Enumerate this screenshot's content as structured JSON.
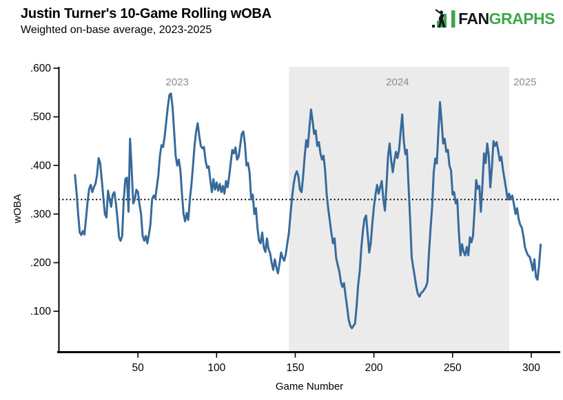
{
  "header": {
    "title": "Justin Turner's 10-Game Rolling wOBA",
    "subtitle": "Weighted on-base average, 2023-2025"
  },
  "logo": {
    "fan": "FAN",
    "graphs": "GRAPHS",
    "green": "#3fa74a",
    "dark": "#10181d"
  },
  "chart_data": {
    "type": "line",
    "title": "Justin Turner's 10-Game Rolling wOBA",
    "subtitle": "Weighted on-base average, 2023-2025",
    "xlabel": "Game Number",
    "ylabel": "wOBA",
    "xlim": [
      0,
      318
    ],
    "ylim": [
      0.018,
      0.603
    ],
    "x_ticks": [
      50,
      100,
      150,
      200,
      250,
      300
    ],
    "y_ticks": [
      0.1,
      0.2,
      0.3,
      0.4,
      0.5,
      0.6
    ],
    "y_tick_labels": [
      ".100",
      ".200",
      ".300",
      ".400",
      ".500",
      ".600"
    ],
    "grid": false,
    "legend": "none",
    "line_color": "#376a9b",
    "axis_color": "#000000",
    "year_label_color": "#8a8a8a",
    "reference_line": {
      "value": 0.33,
      "style": "dotted",
      "color": "#000000"
    },
    "season_bands": [
      {
        "label": "2023",
        "label_x": 75,
        "shaded": false
      },
      {
        "label": "2024",
        "x_start": 146,
        "x_end": 286,
        "shaded": true,
        "color": "#ebebeb",
        "label_x": 215
      },
      {
        "label": "2025",
        "label_x": 296,
        "shaded": false
      }
    ],
    "series": [
      {
        "name": "10-Game Rolling wOBA",
        "points": [
          [
            10,
            0.38
          ],
          [
            11,
            0.345
          ],
          [
            12,
            0.3
          ],
          [
            13,
            0.262
          ],
          [
            14,
            0.257
          ],
          [
            15,
            0.265
          ],
          [
            16,
            0.258
          ],
          [
            17,
            0.29
          ],
          [
            18,
            0.325
          ],
          [
            19,
            0.352
          ],
          [
            20,
            0.36
          ],
          [
            21,
            0.345
          ],
          [
            22,
            0.355
          ],
          [
            23,
            0.362
          ],
          [
            24,
            0.38
          ],
          [
            25,
            0.415
          ],
          [
            26,
            0.405
          ],
          [
            27,
            0.372
          ],
          [
            28,
            0.335
          ],
          [
            29,
            0.3
          ],
          [
            30,
            0.293
          ],
          [
            31,
            0.348
          ],
          [
            32,
            0.33
          ],
          [
            33,
            0.315
          ],
          [
            34,
            0.34
          ],
          [
            35,
            0.345
          ],
          [
            36,
            0.322
          ],
          [
            37,
            0.29
          ],
          [
            38,
            0.252
          ],
          [
            39,
            0.245
          ],
          [
            40,
            0.255
          ],
          [
            41,
            0.33
          ],
          [
            42,
            0.372
          ],
          [
            43,
            0.375
          ],
          [
            44,
            0.305
          ],
          [
            45,
            0.455
          ],
          [
            46,
            0.395
          ],
          [
            47,
            0.322
          ],
          [
            48,
            0.33
          ],
          [
            49,
            0.35
          ],
          [
            50,
            0.345
          ],
          [
            51,
            0.32
          ],
          [
            52,
            0.3
          ],
          [
            53,
            0.255
          ],
          [
            54,
            0.245
          ],
          [
            55,
            0.255
          ],
          [
            56,
            0.24
          ],
          [
            57,
            0.258
          ],
          [
            58,
            0.28
          ],
          [
            59,
            0.33
          ],
          [
            60,
            0.338
          ],
          [
            61,
            0.332
          ],
          [
            62,
            0.355
          ],
          [
            63,
            0.38
          ],
          [
            64,
            0.42
          ],
          [
            65,
            0.442
          ],
          [
            66,
            0.438
          ],
          [
            67,
            0.46
          ],
          [
            68,
            0.49
          ],
          [
            69,
            0.52
          ],
          [
            70,
            0.545
          ],
          [
            71,
            0.548
          ],
          [
            72,
            0.52
          ],
          [
            73,
            0.47
          ],
          [
            74,
            0.42
          ],
          [
            75,
            0.4
          ],
          [
            76,
            0.412
          ],
          [
            77,
            0.39
          ],
          [
            78,
            0.34
          ],
          [
            79,
            0.3
          ],
          [
            80,
            0.285
          ],
          [
            81,
            0.302
          ],
          [
            82,
            0.288
          ],
          [
            83,
            0.33
          ],
          [
            84,
            0.36
          ],
          [
            85,
            0.4
          ],
          [
            86,
            0.44
          ],
          [
            87,
            0.47
          ],
          [
            88,
            0.487
          ],
          [
            89,
            0.46
          ],
          [
            90,
            0.44
          ],
          [
            91,
            0.435
          ],
          [
            92,
            0.438
          ],
          [
            93,
            0.41
          ],
          [
            94,
            0.395
          ],
          [
            95,
            0.398
          ],
          [
            96,
            0.37
          ],
          [
            97,
            0.345
          ],
          [
            98,
            0.372
          ],
          [
            99,
            0.35
          ],
          [
            100,
            0.365
          ],
          [
            101,
            0.348
          ],
          [
            102,
            0.362
          ],
          [
            103,
            0.345
          ],
          [
            104,
            0.358
          ],
          [
            105,
            0.342
          ],
          [
            106,
            0.368
          ],
          [
            107,
            0.355
          ],
          [
            108,
            0.378
          ],
          [
            109,
            0.405
          ],
          [
            110,
            0.432
          ],
          [
            111,
            0.425
          ],
          [
            112,
            0.437
          ],
          [
            113,
            0.412
          ],
          [
            114,
            0.418
          ],
          [
            115,
            0.44
          ],
          [
            116,
            0.465
          ],
          [
            117,
            0.47
          ],
          [
            118,
            0.445
          ],
          [
            119,
            0.4
          ],
          [
            120,
            0.405
          ],
          [
            121,
            0.385
          ],
          [
            122,
            0.33
          ],
          [
            123,
            0.34
          ],
          [
            124,
            0.3
          ],
          [
            125,
            0.312
          ],
          [
            126,
            0.27
          ],
          [
            127,
            0.245
          ],
          [
            128,
            0.24
          ],
          [
            129,
            0.262
          ],
          [
            130,
            0.232
          ],
          [
            131,
            0.222
          ],
          [
            132,
            0.25
          ],
          [
            133,
            0.228
          ],
          [
            134,
            0.22
          ],
          [
            135,
            0.2
          ],
          [
            136,
            0.185
          ],
          [
            137,
            0.207
          ],
          [
            138,
            0.19
          ],
          [
            139,
            0.178
          ],
          [
            140,
            0.198
          ],
          [
            141,
            0.221
          ],
          [
            142,
            0.21
          ],
          [
            143,
            0.204
          ],
          [
            144,
            0.218
          ],
          [
            145,
            0.24
          ],
          [
            146,
            0.262
          ],
          [
            147,
            0.3
          ],
          [
            148,
            0.335
          ],
          [
            149,
            0.362
          ],
          [
            150,
            0.38
          ],
          [
            151,
            0.388
          ],
          [
            152,
            0.378
          ],
          [
            153,
            0.35
          ],
          [
            154,
            0.345
          ],
          [
            155,
            0.378
          ],
          [
            156,
            0.42
          ],
          [
            157,
            0.452
          ],
          [
            158,
            0.438
          ],
          [
            159,
            0.478
          ],
          [
            160,
            0.515
          ],
          [
            161,
            0.492
          ],
          [
            162,
            0.465
          ],
          [
            163,
            0.472
          ],
          [
            164,
            0.44
          ],
          [
            165,
            0.448
          ],
          [
            166,
            0.425
          ],
          [
            167,
            0.412
          ],
          [
            168,
            0.42
          ],
          [
            169,
            0.39
          ],
          [
            170,
            0.34
          ],
          [
            171,
            0.31
          ],
          [
            172,
            0.285
          ],
          [
            173,
            0.26
          ],
          [
            174,
            0.24
          ],
          [
            175,
            0.25
          ],
          [
            176,
            0.21
          ],
          [
            177,
            0.195
          ],
          [
            178,
            0.182
          ],
          [
            179,
            0.16
          ],
          [
            180,
            0.15
          ],
          [
            181,
            0.158
          ],
          [
            182,
            0.132
          ],
          [
            183,
            0.108
          ],
          [
            184,
            0.082
          ],
          [
            185,
            0.07
          ],
          [
            186,
            0.065
          ],
          [
            187,
            0.07
          ],
          [
            188,
            0.075
          ],
          [
            189,
            0.11
          ],
          [
            190,
            0.155
          ],
          [
            191,
            0.183
          ],
          [
            192,
            0.23
          ],
          [
            193,
            0.265
          ],
          [
            194,
            0.29
          ],
          [
            195,
            0.297
          ],
          [
            196,
            0.26
          ],
          [
            197,
            0.221
          ],
          [
            198,
            0.24
          ],
          [
            199,
            0.28
          ],
          [
            200,
            0.315
          ],
          [
            201,
            0.34
          ],
          [
            202,
            0.36
          ],
          [
            203,
            0.342
          ],
          [
            204,
            0.355
          ],
          [
            205,
            0.368
          ],
          [
            206,
            0.33
          ],
          [
            207,
            0.307
          ],
          [
            208,
            0.36
          ],
          [
            209,
            0.42
          ],
          [
            210,
            0.445
          ],
          [
            211,
            0.41
          ],
          [
            212,
            0.386
          ],
          [
            213,
            0.41
          ],
          [
            214,
            0.428
          ],
          [
            215,
            0.415
          ],
          [
            216,
            0.432
          ],
          [
            217,
            0.47
          ],
          [
            218,
            0.505
          ],
          [
            219,
            0.45
          ],
          [
            220,
            0.423
          ],
          [
            221,
            0.432
          ],
          [
            222,
            0.36
          ],
          [
            223,
            0.291
          ],
          [
            224,
            0.211
          ],
          [
            225,
            0.19
          ],
          [
            226,
            0.17
          ],
          [
            227,
            0.15
          ],
          [
            228,
            0.135
          ],
          [
            229,
            0.13
          ],
          [
            230,
            0.138
          ],
          [
            231,
            0.14
          ],
          [
            232,
            0.145
          ],
          [
            233,
            0.15
          ],
          [
            234,
            0.16
          ],
          [
            235,
            0.22
          ],
          [
            236,
            0.27
          ],
          [
            237,
            0.315
          ],
          [
            238,
            0.386
          ],
          [
            239,
            0.414
          ],
          [
            240,
            0.404
          ],
          [
            241,
            0.47
          ],
          [
            242,
            0.53
          ],
          [
            243,
            0.49
          ],
          [
            244,
            0.445
          ],
          [
            245,
            0.455
          ],
          [
            246,
            0.428
          ],
          [
            247,
            0.432
          ],
          [
            248,
            0.4
          ],
          [
            249,
            0.39
          ],
          [
            250,
            0.34
          ],
          [
            251,
            0.345
          ],
          [
            252,
            0.322
          ],
          [
            253,
            0.33
          ],
          [
            254,
            0.262
          ],
          [
            255,
            0.215
          ],
          [
            256,
            0.238
          ],
          [
            257,
            0.222
          ],
          [
            258,
            0.215
          ],
          [
            259,
            0.232
          ],
          [
            260,
            0.215
          ],
          [
            261,
            0.252
          ],
          [
            262,
            0.242
          ],
          [
            263,
            0.255
          ],
          [
            264,
            0.31
          ],
          [
            265,
            0.37
          ],
          [
            266,
            0.352
          ],
          [
            267,
            0.358
          ],
          [
            268,
            0.305
          ],
          [
            269,
            0.36
          ],
          [
            270,
            0.425
          ],
          [
            271,
            0.405
          ],
          [
            272,
            0.445
          ],
          [
            273,
            0.42
          ],
          [
            274,
            0.355
          ],
          [
            275,
            0.395
          ],
          [
            276,
            0.45
          ],
          [
            277,
            0.44
          ],
          [
            278,
            0.448
          ],
          [
            279,
            0.43
          ],
          [
            280,
            0.41
          ],
          [
            281,
            0.418
          ],
          [
            282,
            0.392
          ],
          [
            283,
            0.372
          ],
          [
            284,
            0.352
          ],
          [
            285,
            0.33
          ],
          [
            286,
            0.342
          ],
          [
            287,
            0.33
          ],
          [
            288,
            0.338
          ],
          [
            289,
            0.32
          ],
          [
            290,
            0.3
          ],
          [
            291,
            0.312
          ],
          [
            292,
            0.29
          ],
          [
            293,
            0.278
          ],
          [
            294,
            0.272
          ],
          [
            295,
            0.255
          ],
          [
            296,
            0.232
          ],
          [
            297,
            0.222
          ],
          [
            298,
            0.215
          ],
          [
            299,
            0.212
          ],
          [
            300,
            0.2
          ],
          [
            301,
            0.184
          ],
          [
            302,
            0.207
          ],
          [
            303,
            0.17
          ],
          [
            304,
            0.165
          ],
          [
            305,
            0.195
          ],
          [
            306,
            0.237
          ]
        ]
      }
    ]
  }
}
